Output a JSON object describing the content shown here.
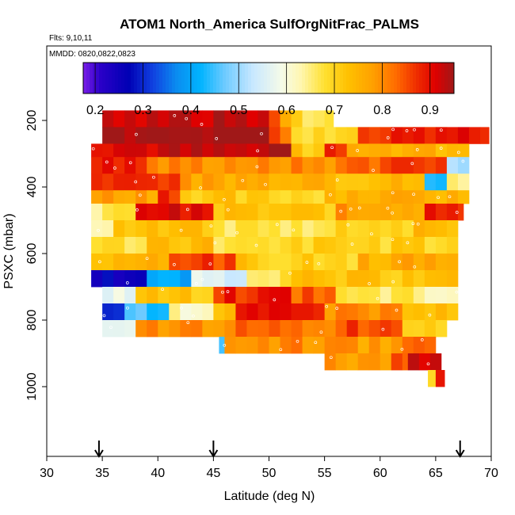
{
  "chart_data": {
    "type": "heatmap",
    "title": "ATOM1 North_America SulfOrgNitFrac_PALMS",
    "flights_label": "Flts: 9,10,11",
    "dates_label": "MMDD: 0820,0822,0823",
    "xlabel": "Latitude (deg N)",
    "ylabel": "PSXC (mbar)",
    "xlim": [
      30,
      70
    ],
    "ylim": [
      1000,
      100
    ],
    "xticks": [
      "30",
      "35",
      "40",
      "45",
      "50",
      "55",
      "60",
      "65",
      "70"
    ],
    "yticks": [
      "200",
      "400",
      "600",
      "800",
      "1000"
    ],
    "colorbar": {
      "range": [
        0.175,
        0.95
      ],
      "ticks": [
        "0.2",
        "0.3",
        "0.4",
        "0.5",
        "0.6",
        "0.7",
        "0.8",
        "0.9"
      ],
      "placement": "top-inside"
    },
    "arrows_latitude": [
      34.7,
      45,
      67.2
    ],
    "bands": [
      {
        "p": [
          170,
          220
        ],
        "segments": [
          [
            35,
            45,
            0.93
          ],
          [
            45,
            50,
            0.93
          ],
          [
            50,
            51,
            0.85
          ],
          [
            51,
            52,
            0.78
          ],
          [
            52,
            53,
            0.72
          ],
          [
            53,
            55.8,
            0.68
          ]
        ]
      },
      {
        "p": [
          220,
          270
        ],
        "segments": [
          [
            35,
            50,
            0.95
          ],
          [
            50,
            51,
            0.88
          ],
          [
            51,
            52,
            0.8
          ],
          [
            52,
            66,
            0.7
          ],
          [
            58,
            63,
            0.88
          ],
          [
            63,
            69.8,
            0.9
          ]
        ]
      },
      {
        "p": [
          270,
          310
        ],
        "segments": [
          [
            34,
            50,
            0.92
          ],
          [
            50,
            52,
            0.95
          ],
          [
            52,
            55,
            0.72
          ],
          [
            55,
            57,
            0.88
          ],
          [
            57,
            61,
            0.78
          ],
          [
            61,
            68,
            0.75
          ]
        ]
      },
      {
        "p": [
          310,
          360
        ],
        "segments": [
          [
            34,
            39,
            0.88
          ],
          [
            39,
            57,
            0.8
          ],
          [
            57,
            61,
            0.84
          ],
          [
            61,
            66,
            0.88
          ],
          [
            66,
            68,
            0.5
          ]
        ]
      },
      {
        "p": [
          360,
          410
        ],
        "segments": [
          [
            34,
            42,
            0.88
          ],
          [
            42,
            56,
            0.77
          ],
          [
            56,
            64,
            0.74
          ],
          [
            64,
            66,
            0.42
          ],
          [
            66,
            68,
            0.66
          ]
        ]
      },
      {
        "p": [
          410,
          450
        ],
        "segments": [
          [
            34,
            40,
            0.78
          ],
          [
            40,
            42,
            0.88
          ],
          [
            42,
            47,
            0.72
          ],
          [
            47,
            55,
            0.7
          ],
          [
            55,
            68,
            0.76
          ]
        ]
      },
      {
        "p": [
          450,
          500
        ],
        "segments": [
          [
            34,
            38,
            0.66
          ],
          [
            38,
            45,
            0.9
          ],
          [
            45,
            56,
            0.72
          ],
          [
            56,
            64,
            0.78
          ],
          [
            64,
            67.5,
            0.88
          ]
        ]
      },
      {
        "p": [
          500,
          550
        ],
        "segments": [
          [
            34,
            36,
            0.65
          ],
          [
            36,
            45,
            0.72
          ],
          [
            45,
            56,
            0.67
          ],
          [
            56,
            63,
            0.7
          ],
          [
            63,
            67,
            0.74
          ]
        ]
      },
      {
        "p": [
          550,
          600
        ],
        "segments": [
          [
            34,
            39,
            0.68
          ],
          [
            39,
            45,
            0.74
          ],
          [
            45,
            52,
            0.67
          ],
          [
            52,
            67,
            0.7
          ]
        ]
      },
      {
        "p": [
          600,
          650
        ],
        "segments": [
          [
            34,
            37,
            0.74
          ],
          [
            37,
            41,
            0.76
          ],
          [
            41,
            47,
            0.86
          ],
          [
            47,
            50,
            0.72
          ],
          [
            50,
            58,
            0.7
          ],
          [
            58,
            67,
            0.76
          ]
        ]
      },
      {
        "p": [
          650,
          700
        ],
        "segments": [
          [
            34,
            39,
            0.26
          ],
          [
            39,
            43,
            0.4
          ],
          [
            43,
            48,
            0.55
          ],
          [
            48,
            52,
            0.68
          ],
          [
            52,
            67,
            0.72
          ]
        ]
      },
      {
        "p": [
          700,
          750
        ],
        "segments": [
          [
            35,
            38,
            0.58
          ],
          [
            38,
            45,
            0.72
          ],
          [
            45,
            52,
            0.88
          ],
          [
            52,
            56,
            0.84
          ],
          [
            56,
            63,
            0.66
          ],
          [
            63,
            67,
            0.62
          ]
        ]
      },
      {
        "p": [
          750,
          800
        ],
        "segments": [
          [
            35,
            37,
            0.3
          ],
          [
            37,
            41,
            0.45
          ],
          [
            41,
            45,
            0.62
          ],
          [
            45,
            47,
            0.74
          ],
          [
            47,
            55,
            0.88
          ],
          [
            55,
            62,
            0.8
          ],
          [
            62,
            67,
            0.72
          ]
        ]
      },
      {
        "p": [
          800,
          850
        ],
        "segments": [
          [
            35,
            38,
            0.55
          ],
          [
            38,
            46,
            0.8
          ],
          [
            46,
            56,
            0.82
          ],
          [
            56,
            62,
            0.86
          ],
          [
            62,
            66,
            0.72
          ]
        ]
      },
      {
        "p": [
          850,
          900
        ],
        "segments": [
          [
            45.5,
            46,
            0.48
          ],
          [
            46,
            55,
            0.8
          ],
          [
            55,
            62,
            0.78
          ],
          [
            62,
            65,
            0.86
          ]
        ]
      },
      {
        "p": [
          900,
          950
        ],
        "segments": [
          [
            55,
            61,
            0.78
          ],
          [
            61,
            62.5,
            0.86
          ],
          [
            62.5,
            65.5,
            0.92
          ]
        ]
      },
      {
        "p": [
          950,
          1000
        ],
        "segments": [
          [
            64.3,
            65,
            0.7
          ],
          [
            65,
            65.8,
            0.9
          ]
        ]
      }
    ]
  }
}
